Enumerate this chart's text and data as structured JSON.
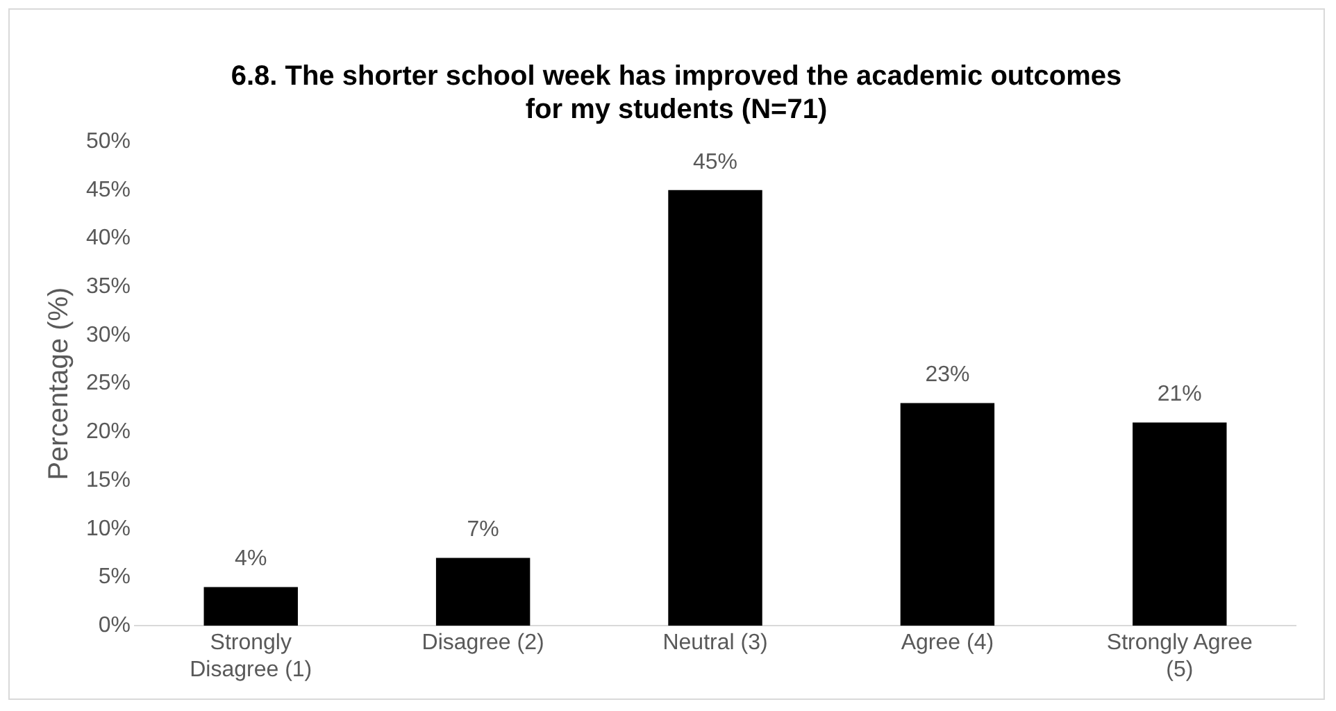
{
  "chart_data": {
    "type": "bar",
    "title": "6.8. The shorter school week has improved the academic outcomes for my students (N=71)",
    "ylabel": "Percentage (%)",
    "categories": [
      "Strongly Disagree (1)",
      "Disagree (2)",
      "Neutral (3)",
      "Agree (4)",
      "Strongly Agree (5)"
    ],
    "values": [
      4,
      7,
      45,
      23,
      21
    ],
    "color": "#000000",
    "ylim": [
      0,
      50
    ],
    "yticks": [
      {
        "value": 0,
        "label": "0%"
      },
      {
        "value": 5,
        "label": "5%"
      },
      {
        "value": 10,
        "label": "10%"
      },
      {
        "value": 15,
        "label": "15%"
      },
      {
        "value": 20,
        "label": "20%"
      },
      {
        "value": 25,
        "label": "25%"
      },
      {
        "value": 30,
        "label": "30%"
      },
      {
        "value": 35,
        "label": "35%"
      },
      {
        "value": 40,
        "label": "40%"
      },
      {
        "value": 45,
        "label": "45%"
      },
      {
        "value": 50,
        "label": "50%"
      }
    ],
    "value_labels": [
      "4%",
      "7%",
      "45%",
      "23%",
      "21%"
    ],
    "grid": false,
    "legend": false
  }
}
